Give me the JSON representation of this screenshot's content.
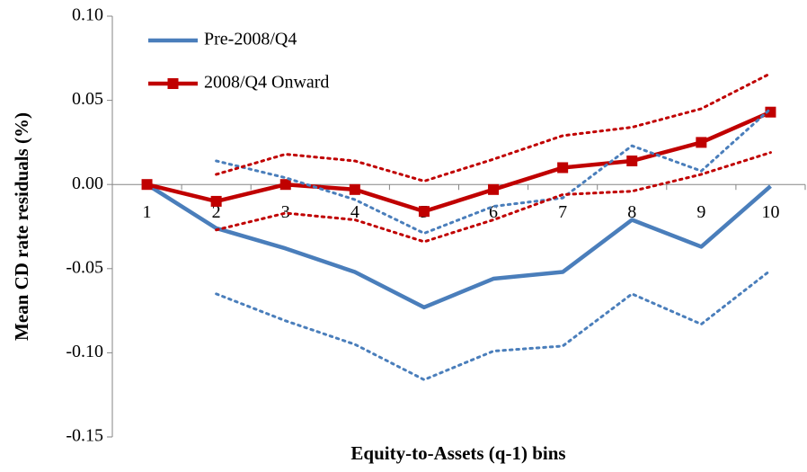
{
  "chart_data": {
    "type": "line",
    "x_label": "Equity-to-Assets (q-1) bins",
    "y_label": "Mean CD rate residuals (%)",
    "categories": [
      "1",
      "2",
      "3",
      "4",
      "5",
      "6",
      "7",
      "8",
      "9",
      "10"
    ],
    "ylim": [
      -0.15,
      0.1
    ],
    "yticks": [
      {
        "value": -0.15,
        "label": "-0.15"
      },
      {
        "value": -0.1,
        "label": "-0.10"
      },
      {
        "value": -0.05,
        "label": "-0.05"
      },
      {
        "value": 0,
        "label": "0.00"
      },
      {
        "value": 0.05,
        "label": "0.05"
      },
      {
        "value": 0.1,
        "label": "0.10"
      }
    ],
    "grid": false,
    "legend": "top-left",
    "series": [
      {
        "name": "Pre-2008/Q4",
        "color": "#4a7ebb",
        "style": "solid",
        "marker": "none",
        "values": [
          0.0,
          -0.026,
          -0.038,
          -0.052,
          -0.073,
          -0.056,
          -0.052,
          -0.021,
          -0.037,
          -0.001
        ]
      },
      {
        "name": "2008/Q4 Onward",
        "color": "#c00000",
        "style": "solid",
        "marker": "square",
        "values": [
          0.0,
          -0.01,
          0.0,
          -0.003,
          -0.016,
          -0.003,
          0.01,
          0.014,
          0.025,
          0.043
        ]
      },
      {
        "color": "#4a7ebb",
        "style": "dotted",
        "marker": "none",
        "values": [
          null,
          0.014,
          0.004,
          -0.009,
          -0.029,
          -0.013,
          -0.008,
          0.023,
          0.008,
          0.045
        ]
      },
      {
        "color": "#4a7ebb",
        "style": "dotted",
        "marker": "none",
        "values": [
          null,
          -0.065,
          -0.081,
          -0.095,
          -0.116,
          -0.099,
          -0.096,
          -0.065,
          -0.083,
          -0.051
        ]
      },
      {
        "color": "#c00000",
        "style": "dotted",
        "marker": "none",
        "values": [
          null,
          0.006,
          0.018,
          0.014,
          0.002,
          0.015,
          0.029,
          0.034,
          0.045,
          0.066
        ]
      },
      {
        "color": "#c00000",
        "style": "dotted",
        "marker": "none",
        "values": [
          null,
          -0.027,
          -0.017,
          -0.021,
          -0.034,
          -0.021,
          -0.006,
          -0.004,
          0.006,
          0.019
        ]
      }
    ]
  }
}
